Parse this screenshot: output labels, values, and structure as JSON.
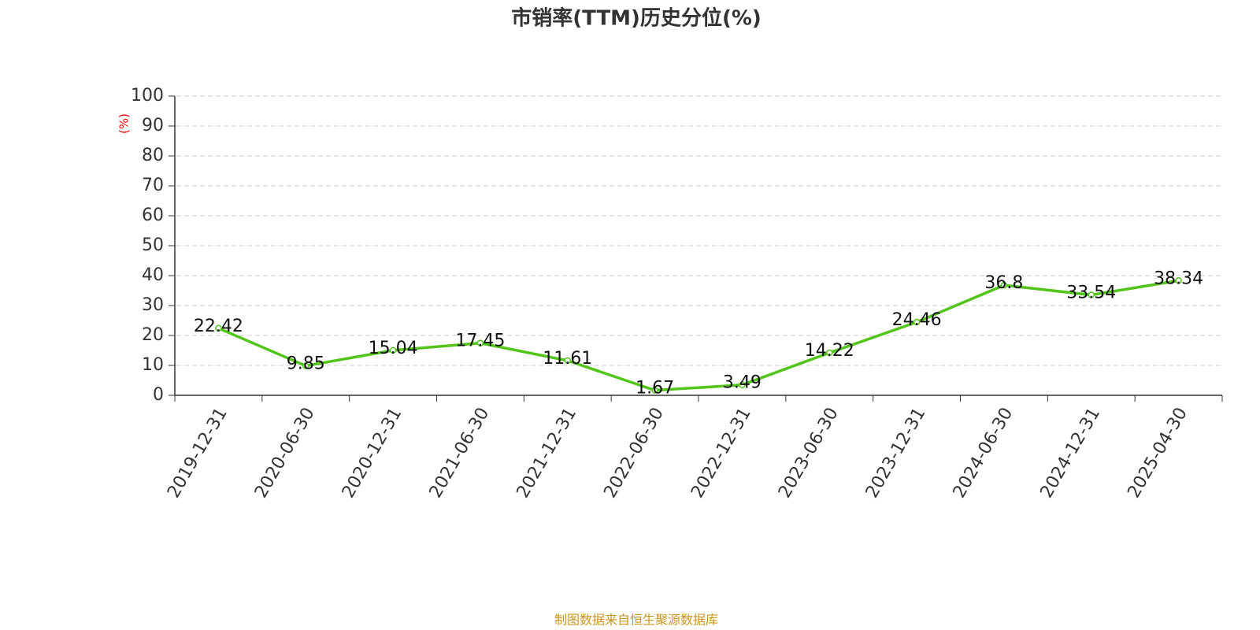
{
  "chart_data": {
    "type": "line",
    "title": "市销率(TTM)历史分位(%)",
    "ylabel": "(%)",
    "categories": [
      "2019-12-31",
      "2020-06-30",
      "2020-12-31",
      "2021-06-30",
      "2021-12-31",
      "2022-06-30",
      "2022-12-31",
      "2023-06-30",
      "2023-12-31",
      "2024-06-30",
      "2024-12-31",
      "2025-04-30"
    ],
    "series": [
      {
        "name": "市销率(TTM)历史分位",
        "color": "#52c41a",
        "values": [
          22.42,
          9.85,
          15.04,
          17.45,
          11.61,
          1.67,
          3.49,
          14.22,
          24.46,
          36.8,
          33.54,
          38.34
        ]
      }
    ],
    "ylim": [
      0,
      100
    ],
    "yticks": [
      0,
      10,
      20,
      30,
      40,
      50,
      60,
      70,
      80,
      90,
      100
    ],
    "grid": true,
    "source": "制图数据来自恒生聚源数据库"
  }
}
